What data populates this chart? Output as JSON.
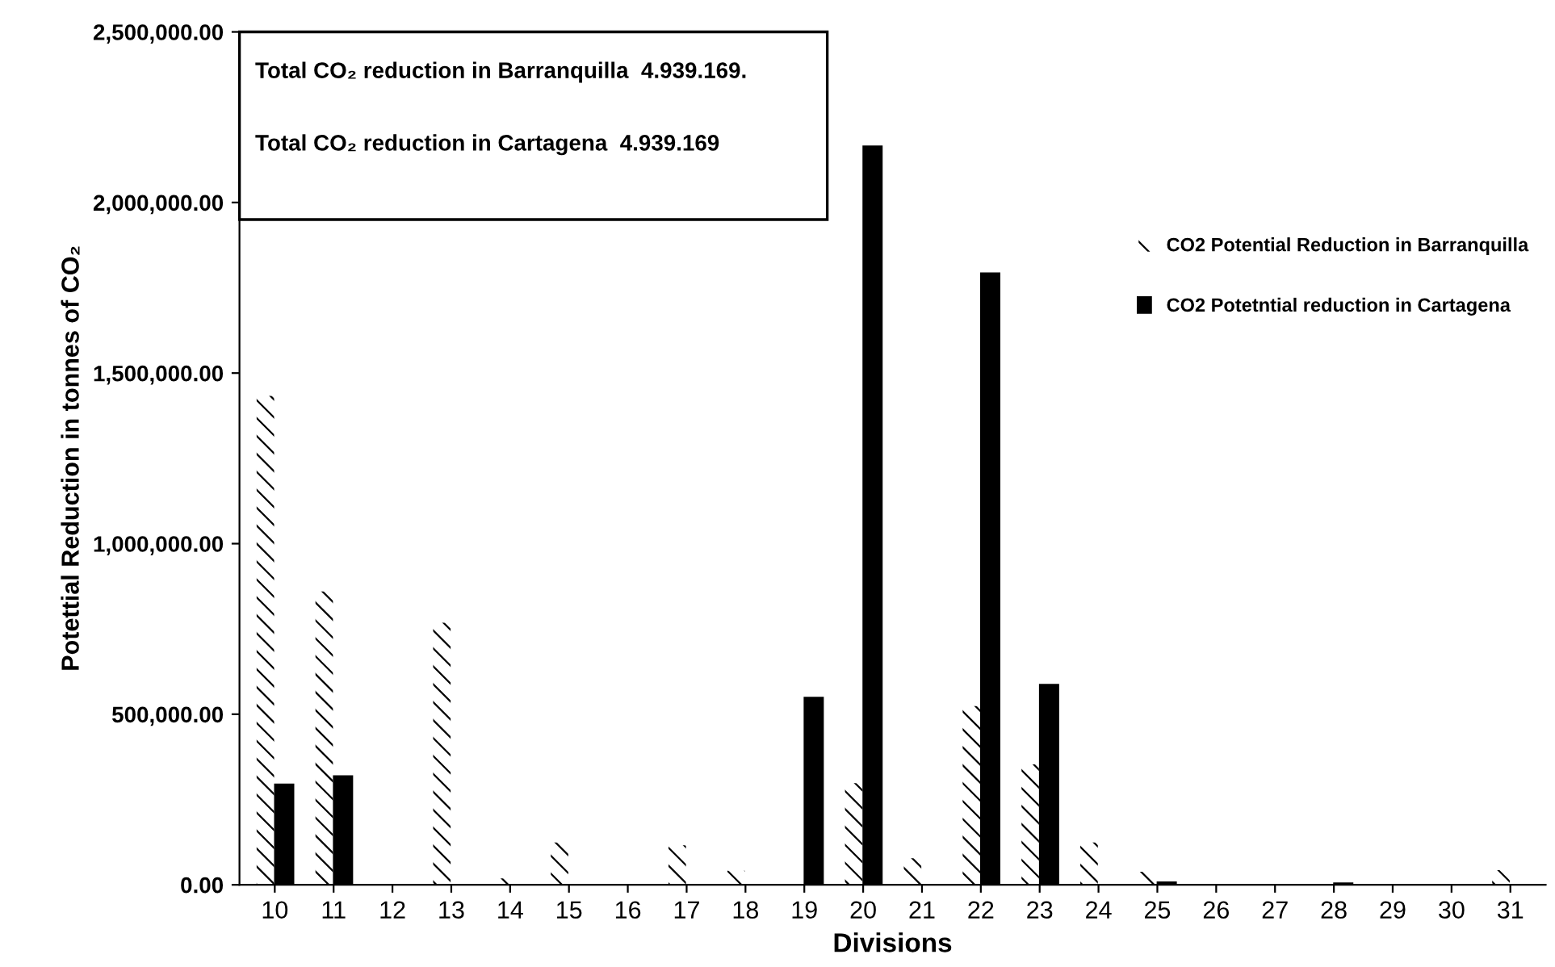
{
  "chart_data": {
    "type": "bar",
    "xlabel": "Divisions",
    "ylabel": "Potettial Reduction in tonnes of CO₂",
    "categories": [
      "10",
      "11",
      "12",
      "13",
      "14",
      "15",
      "16",
      "17",
      "18",
      "19",
      "20",
      "21",
      "22",
      "23",
      "24",
      "25",
      "26",
      "27",
      "28",
      "29",
      "30",
      "31"
    ],
    "series": [
      {
        "name": "CO2 Potential Reduction in Barranquilla",
        "color": "#ffffff",
        "values": [
          1435000,
          862000,
          0,
          770000,
          21000,
          126000,
          0,
          118000,
          43000,
          0,
          300000,
          80000,
          526000,
          355000,
          126000,
          40000,
          0,
          0,
          0,
          0,
          0,
          45000
        ]
      },
      {
        "name": "CO2 Potetntial reduction in Cartagena",
        "color": "#000000",
        "values": [
          295000,
          319000,
          0,
          0,
          0,
          0,
          0,
          0,
          0,
          549000,
          2165000,
          0,
          1793000,
          587000,
          0,
          8000,
          0,
          0,
          5000,
          0,
          0,
          0
        ]
      }
    ],
    "ylim": [
      0,
      2500000
    ],
    "yticks": [
      {
        "value": 0,
        "label": "0.00"
      },
      {
        "value": 500000,
        "label": "500,000.00"
      },
      {
        "value": 1000000,
        "label": "1,000,000.00"
      },
      {
        "value": 1500000,
        "label": "1,500,000.00"
      },
      {
        "value": 2000000,
        "label": "2,000,000.00"
      },
      {
        "value": 2500000,
        "label": "2,500,000.00"
      }
    ],
    "grid": false,
    "legend": "top right",
    "annotations": [
      "Total CO₂ reduction in Barranquilla  4.939.169.",
      "Total CO₂ reduction in Cartagena  4.939.169"
    ]
  }
}
